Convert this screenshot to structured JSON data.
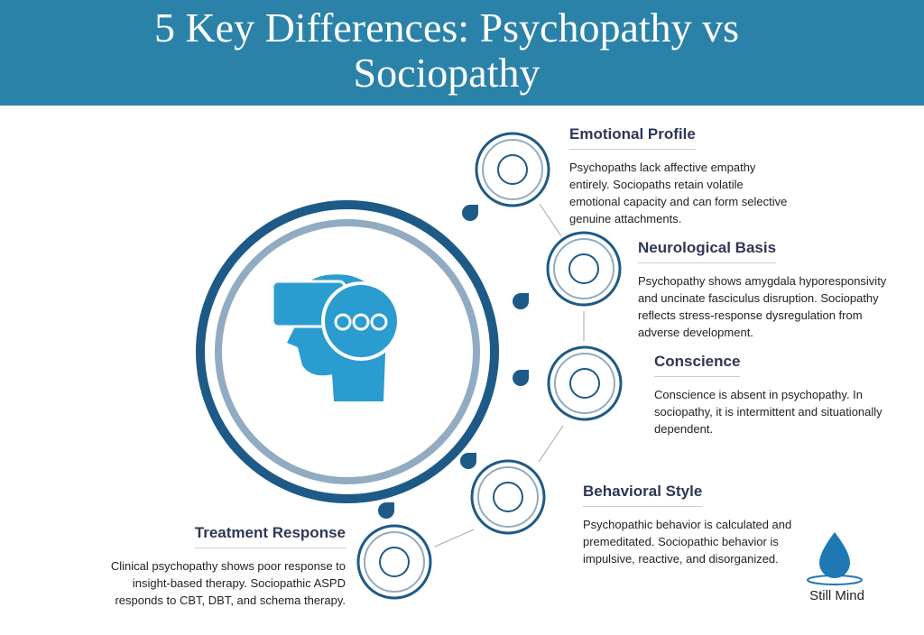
{
  "header": {
    "title": "5 Key Differences: Psychopathy vs Sociopathy"
  },
  "items": [
    {
      "title": "Emotional Profile",
      "body": "Psychopaths lack affective empathy entirely. Sociopaths retain volatile emotional capacity and can form selective genuine attachments."
    },
    {
      "title": "Neurological Basis",
      "body": "Psychopathy shows amygdala hyporesponsivity and uncinate fasciculus disruption. Sociopathy reflects stress-response dysregulation from adverse development."
    },
    {
      "title": "Conscience",
      "body": "Conscience is absent in psychopathy. In sociopathy, it is intermittent and situationally dependent."
    },
    {
      "title": "Behavioral Style",
      "body": "Psychopathic behavior is calculated and premeditated. Sociopathic behavior is impulsive, reactive, and disorganized."
    },
    {
      "title": "Treatment Response",
      "body": "Clinical psychopathy shows poor response to insight-based therapy. Sociopathic ASPD responds to CBT, DBT, and schema therapy."
    }
  ],
  "logo": {
    "text": "Still Mind"
  }
}
